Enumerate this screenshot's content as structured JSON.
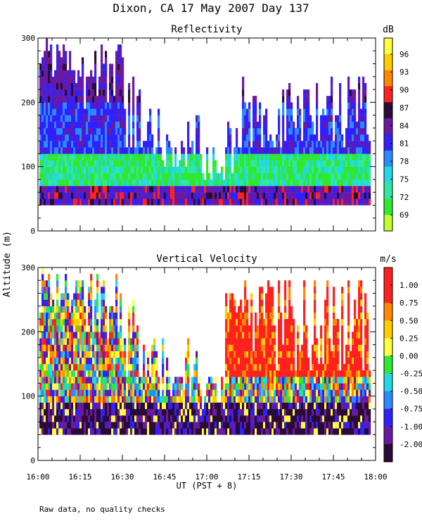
{
  "figure": {
    "title": "Dixon, CA 17 May 2007  Day 137",
    "ylabel": "Altitude (m)",
    "xlabel": "UT  (PST + 8)",
    "footnote": "Raw data, no quality checks"
  },
  "chart_data": [
    {
      "type": "heatmap",
      "title": "Reflectivity",
      "x_ticks": [
        "16:00",
        "16:15",
        "16:30",
        "16:45",
        "17:00",
        "17:15",
        "17:30",
        "17:45",
        "18:00"
      ],
      "x_range_hours_ut": [
        16.0,
        18.0
      ],
      "ylim": [
        0,
        300
      ],
      "y_ticks": [
        "0",
        "100",
        "200",
        "300"
      ],
      "y_tick_values": [
        0,
        100,
        200,
        300
      ],
      "data_bottom_altitude_m": 40,
      "colorbar": {
        "unit": "dB",
        "labels": [
          "96",
          "93",
          "90",
          "87",
          "84",
          "81",
          "78",
          "75",
          "72",
          "69"
        ],
        "colors": [
          "#ffff40",
          "#ffcc00",
          "#ff8800",
          "#ff2020",
          "#2a0a36",
          "#6a1aa0",
          "#3020ff",
          "#2a8aff",
          "#20d8e8",
          "#30e8a0",
          "#30e830",
          "#c0ff30"
        ]
      }
    },
    {
      "type": "heatmap",
      "title": "Vertical Velocity",
      "x_ticks": [
        "16:00",
        "16:15",
        "16:30",
        "16:45",
        "17:00",
        "17:15",
        "17:30",
        "17:45",
        "18:00"
      ],
      "x_range_hours_ut": [
        16.0,
        18.0
      ],
      "ylim": [
        0,
        300
      ],
      "y_ticks": [
        "0",
        "100",
        "200",
        "300"
      ],
      "y_tick_values": [
        0,
        100,
        200,
        300
      ],
      "data_bottom_altitude_m": 40,
      "colorbar": {
        "unit": "m/s",
        "labels": [
          "1.00",
          "0.75",
          "0.50",
          "0.25",
          "0.00",
          "-0.25",
          "-0.50",
          "-0.75",
          "-1.00",
          "-2.00"
        ],
        "colors": [
          "#ff2020",
          "#ff2020",
          "#ff8800",
          "#ffcc00",
          "#ffff40",
          "#30e830",
          "#20d8e8",
          "#2a8aff",
          "#3020ff",
          "#6a1aa0",
          "#2a0a36"
        ]
      }
    }
  ]
}
